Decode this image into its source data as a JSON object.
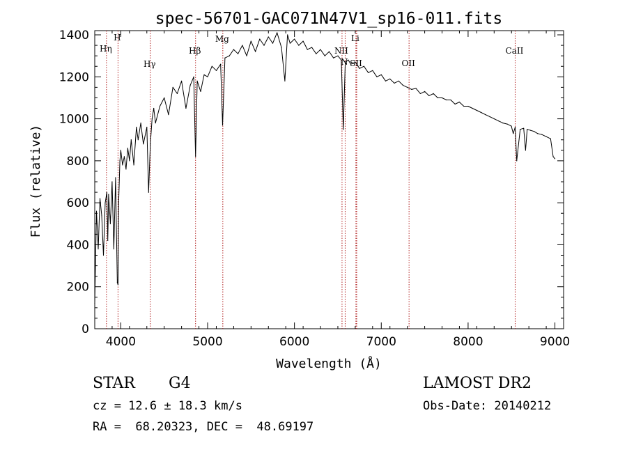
{
  "colors": {
    "line": "#000000",
    "marker": "#b22222",
    "axis": "#000000"
  },
  "chart_data": {
    "type": "line",
    "title": "spec-56701-GAC071N47V1_sp16-011.fits",
    "xlabel": "Wavelength (Å)",
    "ylabel": "Flux (relative)",
    "xlim": [
      3700,
      9100
    ],
    "ylim": [
      0,
      1420
    ],
    "xticks": [
      4000,
      5000,
      6000,
      7000,
      8000,
      9000
    ],
    "yticks": [
      0,
      200,
      400,
      600,
      800,
      1000,
      1200,
      1400
    ],
    "grid": false,
    "series": [
      {
        "name": "flux",
        "x": [
          3700,
          3720,
          3740,
          3760,
          3780,
          3800,
          3820,
          3840,
          3850,
          3860,
          3880,
          3900,
          3920,
          3940,
          3960,
          3968,
          3975,
          3990,
          4000,
          4020,
          4040,
          4060,
          4080,
          4100,
          4120,
          4150,
          4180,
          4200,
          4230,
          4260,
          4300,
          4320,
          4340,
          4360,
          4380,
          4400,
          4450,
          4500,
          4550,
          4600,
          4650,
          4700,
          4750,
          4800,
          4840,
          4861,
          4880,
          4920,
          4960,
          5000,
          5050,
          5100,
          5150,
          5172,
          5200,
          5250,
          5300,
          5350,
          5400,
          5450,
          5500,
          5550,
          5600,
          5650,
          5700,
          5750,
          5800,
          5850,
          5890,
          5920,
          5950,
          6000,
          6050,
          6100,
          6150,
          6200,
          6250,
          6300,
          6350,
          6400,
          6450,
          6500,
          6540,
          6563,
          6585,
          6620,
          6650,
          6700,
          6750,
          6800,
          6850,
          6900,
          6950,
          7000,
          7050,
          7100,
          7150,
          7200,
          7250,
          7300,
          7350,
          7400,
          7450,
          7500,
          7550,
          7600,
          7650,
          7700,
          7750,
          7800,
          7850,
          7900,
          7950,
          8000,
          8050,
          8100,
          8150,
          8200,
          8250,
          8300,
          8350,
          8400,
          8450,
          8498,
          8520,
          8542,
          8560,
          8600,
          8640,
          8662,
          8680,
          8720,
          8760,
          8800,
          8850,
          8900,
          8950,
          8980,
          9000
        ],
        "values": [
          120,
          560,
          380,
          620,
          540,
          350,
          600,
          650,
          420,
          640,
          500,
          700,
          380,
          720,
          220,
          210,
          600,
          800,
          850,
          780,
          820,
          760,
          860,
          800,
          900,
          780,
          960,
          900,
          980,
          880,
          960,
          650,
          880,
          1000,
          1050,
          980,
          1060,
          1100,
          1020,
          1150,
          1120,
          1180,
          1050,
          1160,
          1200,
          820,
          1180,
          1130,
          1210,
          1200,
          1250,
          1230,
          1260,
          970,
          1290,
          1300,
          1330,
          1310,
          1350,
          1300,
          1370,
          1320,
          1380,
          1350,
          1390,
          1360,
          1410,
          1340,
          1180,
          1400,
          1360,
          1380,
          1350,
          1370,
          1330,
          1340,
          1310,
          1330,
          1300,
          1320,
          1290,
          1300,
          1280,
          950,
          1270,
          1280,
          1260,
          1270,
          1240,
          1250,
          1220,
          1230,
          1200,
          1210,
          1180,
          1190,
          1170,
          1180,
          1160,
          1150,
          1140,
          1145,
          1120,
          1130,
          1110,
          1120,
          1100,
          1100,
          1090,
          1090,
          1070,
          1080,
          1060,
          1060,
          1050,
          1040,
          1030,
          1020,
          1010,
          1000,
          990,
          980,
          975,
          965,
          930,
          960,
          800,
          950,
          955,
          850,
          950,
          945,
          940,
          930,
          925,
          915,
          905,
          820,
          810
        ]
      }
    ],
    "line_markers": [
      {
        "label": "Hη",
        "x": 3835
      },
      {
        "label": "H",
        "x": 3968
      },
      {
        "label": "Hγ",
        "x": 4340
      },
      {
        "label": "Hβ",
        "x": 4861
      },
      {
        "label": "Mg",
        "x": 5175
      },
      {
        "label": "NII",
        "x": 6548
      },
      {
        "label": "N",
        "x": 6584
      },
      {
        "label": "Li",
        "x": 6708
      },
      {
        "label": "OII",
        "x": 7320
      },
      {
        "label": "SII",
        "x": 6717
      },
      {
        "label": "CaII",
        "x": 8542
      }
    ]
  },
  "info": {
    "object_type": "STAR",
    "subclass": "G4",
    "survey": "LAMOST DR2",
    "cz_line": "cz = 12.6 ± 18.3 km/s",
    "obs_date_line": "Obs-Date: 20140212",
    "radec_line": "RA =  68.20323, DEC =  48.69197"
  }
}
